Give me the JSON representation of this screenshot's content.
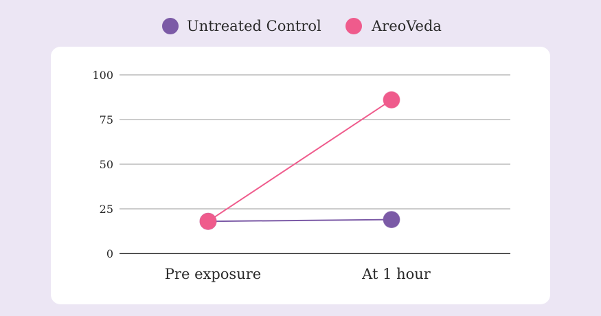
{
  "chart_data": {
    "type": "line",
    "categories": [
      "Pre exposure",
      "At 1 hour"
    ],
    "series": [
      {
        "name": "Untreated Control",
        "values": [
          18,
          19
        ],
        "color": "#7b5aa6"
      },
      {
        "name": "AreoVeda",
        "values": [
          18,
          86
        ],
        "color": "#ef5b8c"
      }
    ],
    "yticks": [
      0,
      25,
      50,
      75,
      100
    ],
    "ylim": [
      0,
      100
    ],
    "grid": true,
    "legend": "top-center",
    "title": "",
    "xlabel": "",
    "ylabel": ""
  },
  "colors": {
    "page_background": "#ece6f4",
    "panel_background": "#ffffff",
    "gridline": "#9a9a9a",
    "axis": "#1a1a1a"
  }
}
